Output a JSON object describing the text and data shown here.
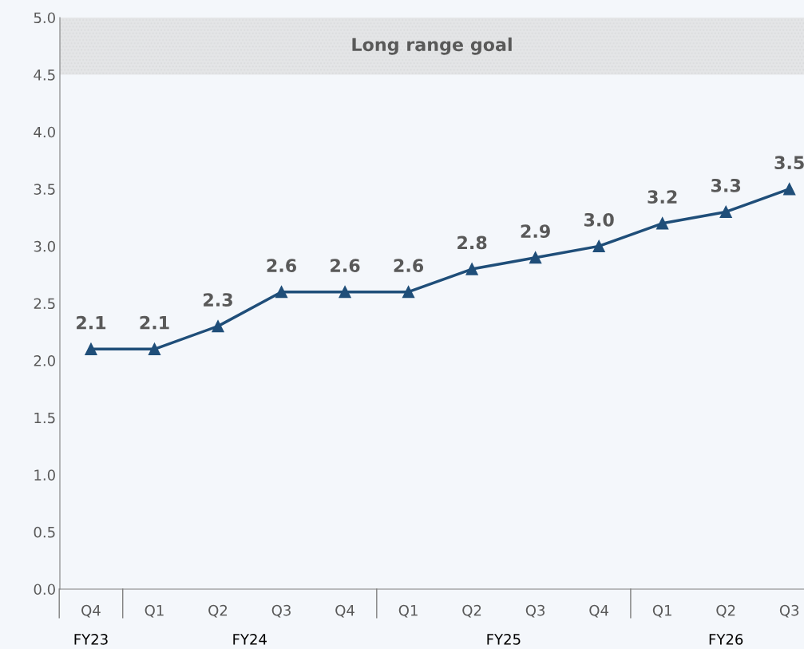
{
  "chart_data": {
    "type": "line",
    "categories": [
      "Q4",
      "Q1",
      "Q2",
      "Q3",
      "Q4",
      "Q1",
      "Q2",
      "Q3",
      "Q4",
      "Q1",
      "Q2",
      "Q3"
    ],
    "series": [
      {
        "color": "#1f4e79",
        "values": [
          2.1,
          2.1,
          2.3,
          2.6,
          2.6,
          2.6,
          2.8,
          2.9,
          3.0,
          3.2,
          3.3,
          3.5
        ],
        "value_labels": [
          "2.1",
          "2.1",
          "2.3",
          "2.6",
          "2.6",
          "2.6",
          "2.8",
          "2.9",
          "3.0",
          "3.2",
          "3.3",
          "3.5"
        ]
      }
    ],
    "ylim": [
      0,
      5
    ],
    "yticks": [
      {
        "value": 0,
        "label": "0.0"
      },
      0.5,
      {
        "value": 1,
        "label": "1.0"
      },
      1.5,
      {
        "value": 2,
        "label": "2.0"
      },
      2.5,
      {
        "value": 3,
        "label": "3.0"
      },
      3.5,
      {
        "value": 4,
        "label": "4.0"
      },
      4.5,
      {
        "value": 5,
        "label": "5.0"
      }
    ],
    "bands": [
      {
        "axis": "y",
        "from": 4.5,
        "to": 5,
        "label": "Long range goal",
        "color": "#d9d9d9"
      }
    ],
    "annotations": [
      "FY23",
      "FY24",
      "FY25",
      "FY26"
    ],
    "marker": "triangle",
    "line_style": "solid",
    "grid": false
  }
}
